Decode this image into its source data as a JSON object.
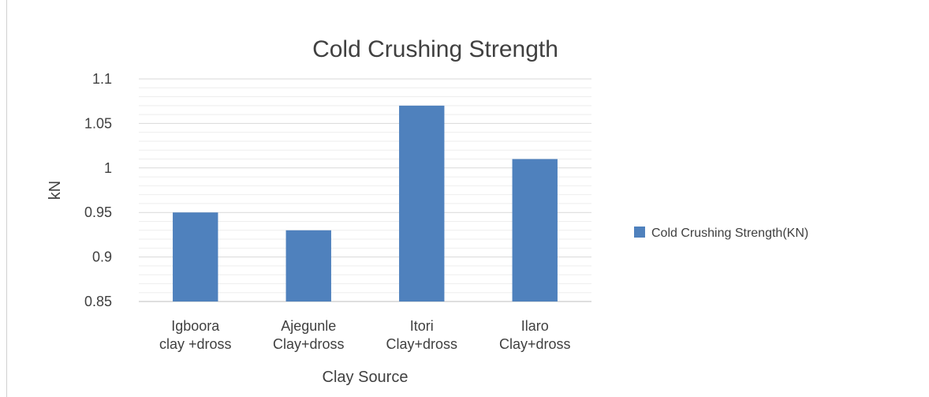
{
  "chart_data": {
    "type": "bar",
    "title": "Cold Crushing Strength",
    "xlabel": "Clay Source",
    "ylabel": "kN",
    "categories": [
      [
        "Igboora",
        "clay +dross"
      ],
      [
        "Ajegunle",
        "Clay+dross"
      ],
      [
        "Itori",
        "Clay+dross"
      ],
      [
        "Ilaro",
        "Clay+dross"
      ]
    ],
    "series": [
      {
        "name": "Cold Crushing Strength(KN)",
        "values": [
          0.95,
          0.93,
          1.07,
          1.01
        ],
        "color": "#4f81bd"
      }
    ],
    "ylim": [
      0.85,
      1.1
    ],
    "yticks": [
      "0.85",
      "0.9",
      "0.95",
      "1",
      "1.05",
      "1.1"
    ],
    "minor_gridlines": true,
    "legend_position": "right"
  }
}
